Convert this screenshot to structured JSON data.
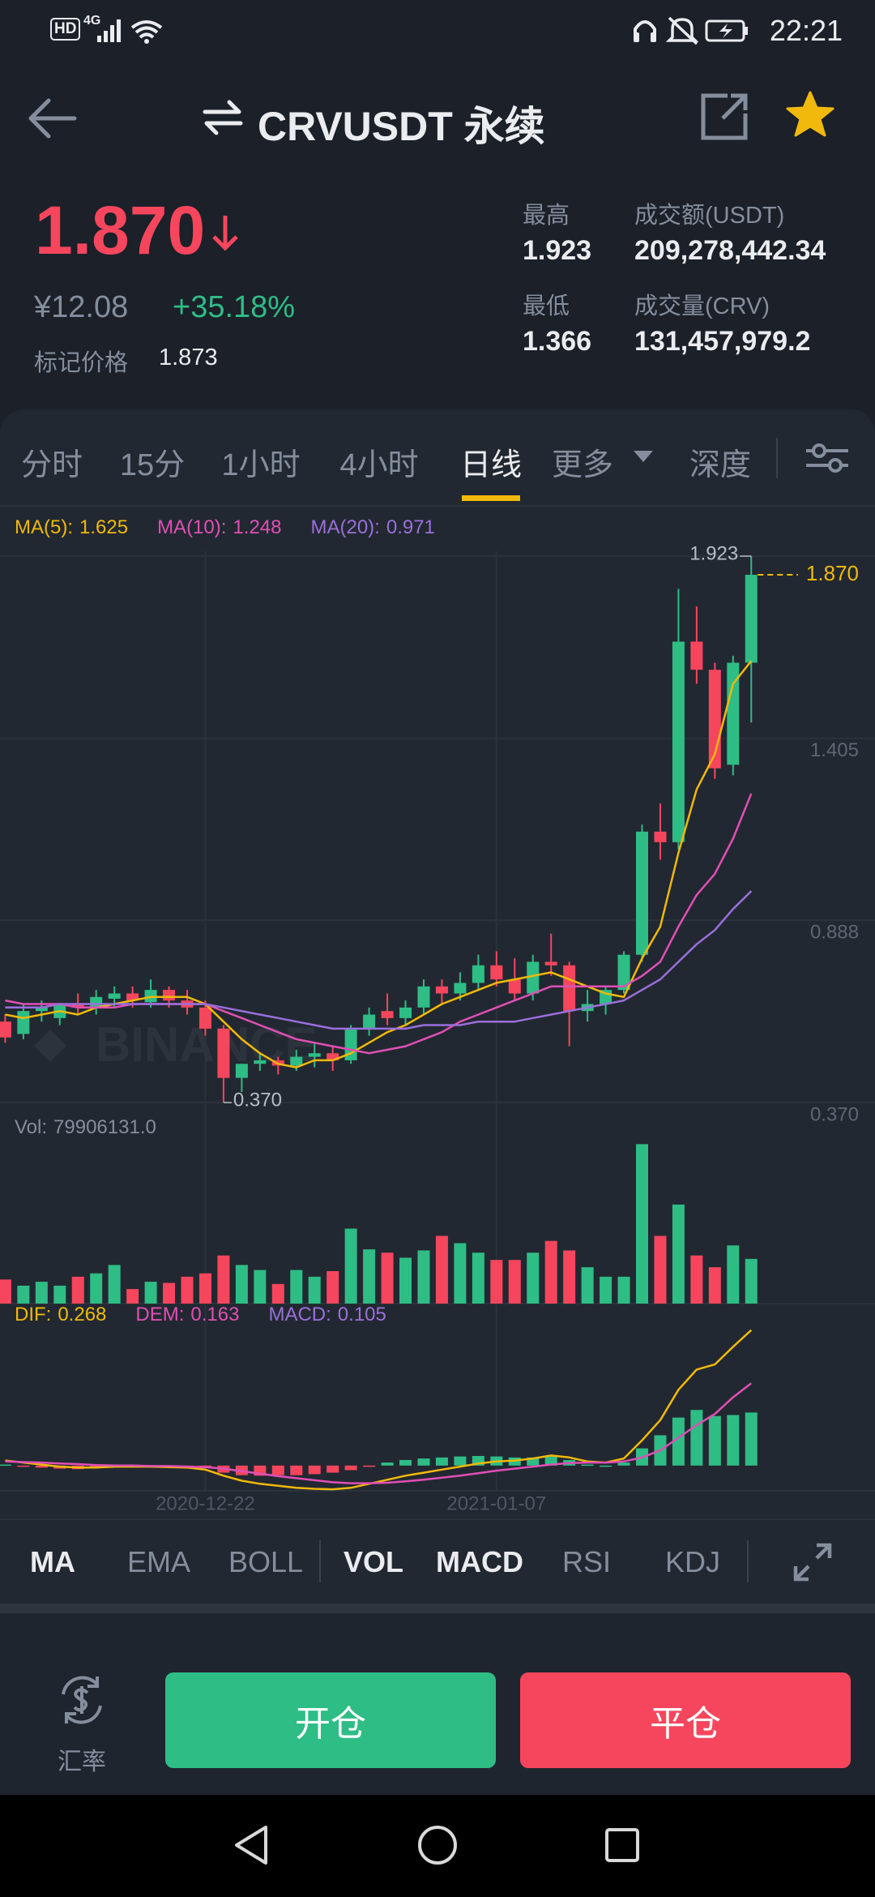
{
  "status_bar": {
    "hd": "HD",
    "network": "4G",
    "time": "22:21"
  },
  "header": {
    "title": "CRVUSDT 永续"
  },
  "ticker": {
    "price": "1.870",
    "cny_price": "¥12.08",
    "change": "+35.18%",
    "mark_price_label": "标记价格",
    "mark_price": "1.873",
    "stats": [
      {
        "label": "最高",
        "value": "1.923"
      },
      {
        "label": "成交额(USDT)",
        "value": "209,278,442.34"
      },
      {
        "label": "最低",
        "value": "1.366"
      },
      {
        "label": "成交量(CRV)",
        "value": "131,457,979.2"
      }
    ]
  },
  "interval_tabs": {
    "items": [
      "分时",
      "15分",
      "1小时",
      "4小时",
      "日线",
      "更多",
      "深度"
    ],
    "active": 4
  },
  "chart_data": [
    {
      "type": "candlestick",
      "categories": [
        null,
        null,
        null,
        null,
        null,
        null,
        null,
        null,
        null,
        null,
        null,
        "2020-12-22",
        null,
        null,
        null,
        null,
        null,
        null,
        null,
        null,
        null,
        null,
        null,
        null,
        null,
        null,
        null,
        "2021-01-07",
        null,
        null,
        null,
        null,
        null,
        null,
        null,
        null,
        null,
        null,
        null,
        null,
        null,
        null
      ],
      "open": [
        0.6,
        0.565,
        0.63,
        0.61,
        0.65,
        0.64,
        0.665,
        0.68,
        0.655,
        0.69,
        0.66,
        0.64,
        0.58,
        0.44,
        0.48,
        0.49,
        0.475,
        0.5,
        0.51,
        0.49,
        0.58,
        0.63,
        0.61,
        0.64,
        0.7,
        0.68,
        0.71,
        0.76,
        0.72,
        0.68,
        0.77,
        0.76,
        0.63,
        0.65,
        0.69,
        0.79,
        1.14,
        1.11,
        1.68,
        1.6,
        1.33,
        1.62
      ],
      "high": [
        0.62,
        0.65,
        0.66,
        0.65,
        0.68,
        0.69,
        0.7,
        0.7,
        0.72,
        0.7,
        0.69,
        0.66,
        0.59,
        0.48,
        0.51,
        0.5,
        0.52,
        0.54,
        0.53,
        0.59,
        0.64,
        0.68,
        0.66,
        0.72,
        0.72,
        0.74,
        0.79,
        0.8,
        0.78,
        0.79,
        0.85,
        0.77,
        0.69,
        0.7,
        0.8,
        1.16,
        1.22,
        1.83,
        1.78,
        1.62,
        1.64,
        1.923
      ],
      "low": [
        0.54,
        0.55,
        0.6,
        0.59,
        0.62,
        0.62,
        0.64,
        0.64,
        0.64,
        0.64,
        0.62,
        0.56,
        0.37,
        0.4,
        0.46,
        0.45,
        0.46,
        0.47,
        0.46,
        0.48,
        0.56,
        0.59,
        0.59,
        0.62,
        0.65,
        0.66,
        0.69,
        0.7,
        0.66,
        0.66,
        0.73,
        0.53,
        0.6,
        0.62,
        0.68,
        0.77,
        1.06,
        1.09,
        1.56,
        1.29,
        1.3,
        1.45
      ],
      "close": [
        0.555,
        0.63,
        0.64,
        0.65,
        0.64,
        0.67,
        0.68,
        0.66,
        0.69,
        0.66,
        0.64,
        0.58,
        0.44,
        0.48,
        0.49,
        0.475,
        0.5,
        0.51,
        0.49,
        0.58,
        0.62,
        0.61,
        0.64,
        0.7,
        0.68,
        0.71,
        0.76,
        0.72,
        0.68,
        0.77,
        0.76,
        0.63,
        0.65,
        0.69,
        0.79,
        1.14,
        1.11,
        1.68,
        1.6,
        1.32,
        1.62,
        1.87
      ],
      "series": [
        {
          "name": "MA(5):",
          "color": "#f0b90b",
          "values": [
            0.62,
            0.61,
            0.62,
            0.63,
            0.62,
            0.64,
            0.65,
            0.66,
            0.67,
            0.67,
            0.67,
            0.65,
            0.6,
            0.55,
            0.51,
            0.48,
            0.47,
            0.49,
            0.49,
            0.51,
            0.54,
            0.57,
            0.59,
            0.62,
            0.65,
            0.67,
            0.69,
            0.71,
            0.72,
            0.73,
            0.74,
            0.72,
            0.7,
            0.68,
            0.67,
            0.78,
            0.87,
            1.08,
            1.26,
            1.36,
            1.56,
            1.625
          ]
        },
        {
          "name": "MA(10):",
          "color": "#e04fb5",
          "values": [
            0.66,
            0.65,
            0.65,
            0.65,
            0.64,
            0.64,
            0.64,
            0.65,
            0.65,
            0.65,
            0.65,
            0.65,
            0.63,
            0.61,
            0.59,
            0.57,
            0.55,
            0.54,
            0.53,
            0.52,
            0.51,
            0.52,
            0.53,
            0.55,
            0.57,
            0.6,
            0.62,
            0.64,
            0.66,
            0.68,
            0.7,
            0.7,
            0.7,
            0.7,
            0.7,
            0.73,
            0.77,
            0.87,
            0.96,
            1.02,
            1.12,
            1.248
          ]
        },
        {
          "name": "MA(20):",
          "color": "#9a6fdb",
          "values": [
            0.64,
            0.64,
            0.64,
            0.65,
            0.65,
            0.65,
            0.65,
            0.65,
            0.65,
            0.65,
            0.65,
            0.65,
            0.64,
            0.63,
            0.62,
            0.61,
            0.6,
            0.59,
            0.58,
            0.58,
            0.58,
            0.58,
            0.58,
            0.59,
            0.59,
            0.59,
            0.6,
            0.6,
            0.6,
            0.61,
            0.62,
            0.63,
            0.64,
            0.65,
            0.66,
            0.69,
            0.72,
            0.77,
            0.82,
            0.86,
            0.92,
            0.971
          ]
        }
      ],
      "up_color": "#2ebd85",
      "down_color": "#f6465d",
      "ylim": [
        0.37,
        1.923
      ],
      "yticks": [
        1.405,
        0.888,
        {
          "value": 0.37,
          "label": "0.370"
        }
      ],
      "grid": true,
      "watermark": "BINANCE",
      "low_label": "0.370",
      "last_label": "1.870",
      "last_color": "#f0b90b"
    },
    {
      "type": "bar",
      "title": "Vol:",
      "values": [
        43000000,
        32000000,
        39000000,
        32000000,
        48000000,
        54000000,
        69000000,
        26000000,
        39000000,
        37000000,
        48000000,
        54000000,
        86000000,
        69000000,
        60000000,
        35000000,
        60000000,
        48000000,
        58000000,
        134000000,
        97000000,
        91000000,
        82000000,
        95000000,
        121000000,
        108000000,
        91000000,
        78000000,
        78000000,
        91000000,
        112000000,
        95000000,
        65000000,
        48000000,
        48000000,
        285000000,
        121000000,
        177000000,
        86000000,
        65000000,
        104000000,
        79906131
      ],
      "last_value_label": "79906131.0",
      "ylim": [
        0,
        300000000
      ]
    },
    {
      "type": "macd",
      "series": [
        {
          "name": "DIF:",
          "color": "#f0b90b",
          "style": "line",
          "values": [
            0.01,
            0.006,
            0.002,
            -0.002,
            -0.004,
            -0.004,
            -0.002,
            -0.002,
            -0.002,
            -0.003,
            -0.004,
            -0.008,
            -0.02,
            -0.03,
            -0.036,
            -0.04,
            -0.044,
            -0.046,
            -0.047,
            -0.044,
            -0.036,
            -0.028,
            -0.02,
            -0.014,
            -0.008,
            -0.002,
            0.004,
            0.008,
            0.01,
            0.014,
            0.02,
            0.016,
            0.008,
            0.006,
            0.014,
            0.05,
            0.09,
            0.15,
            0.19,
            0.2,
            0.235,
            0.268
          ]
        },
        {
          "name": "DEM:",
          "color": "#e04fb5",
          "style": "line",
          "values": [
            0.008,
            0.007,
            0.006,
            0.004,
            0.003,
            0.001,
            0.0,
            0.0,
            -0.001,
            -0.001,
            -0.002,
            -0.003,
            -0.006,
            -0.011,
            -0.016,
            -0.021,
            -0.025,
            -0.029,
            -0.033,
            -0.035,
            -0.035,
            -0.034,
            -0.031,
            -0.028,
            -0.024,
            -0.02,
            -0.015,
            -0.01,
            -0.006,
            -0.002,
            0.002,
            0.005,
            0.006,
            0.006,
            0.008,
            0.016,
            0.03,
            0.055,
            0.08,
            0.102,
            0.135,
            0.163
          ]
        },
        {
          "name": "MACD:",
          "color": "#9a6fdb",
          "style": "bar",
          "values": [
            0.002,
            -0.001,
            -0.004,
            -0.006,
            -0.007,
            -0.005,
            -0.002,
            -0.002,
            -0.001,
            -0.002,
            -0.002,
            -0.005,
            -0.014,
            -0.019,
            -0.02,
            -0.019,
            -0.019,
            -0.017,
            -0.014,
            -0.009,
            -0.001,
            0.006,
            0.011,
            0.014,
            0.016,
            0.018,
            0.019,
            0.018,
            0.016,
            0.016,
            0.018,
            0.011,
            0.002,
            0.0,
            0.006,
            0.034,
            0.06,
            0.095,
            0.11,
            0.098,
            0.1,
            0.105
          ]
        }
      ],
      "ylim": [
        -0.05,
        0.29
      ]
    }
  ],
  "indicator_tabs": {
    "items": [
      "MA",
      "EMA",
      "BOLL",
      "VOL",
      "MACD",
      "RSI",
      "KDJ"
    ],
    "active": [
      0,
      3,
      4
    ]
  },
  "bottom_bar": {
    "exchange_rate": "汇率",
    "open_button": "开仓",
    "close_button": "平仓"
  }
}
